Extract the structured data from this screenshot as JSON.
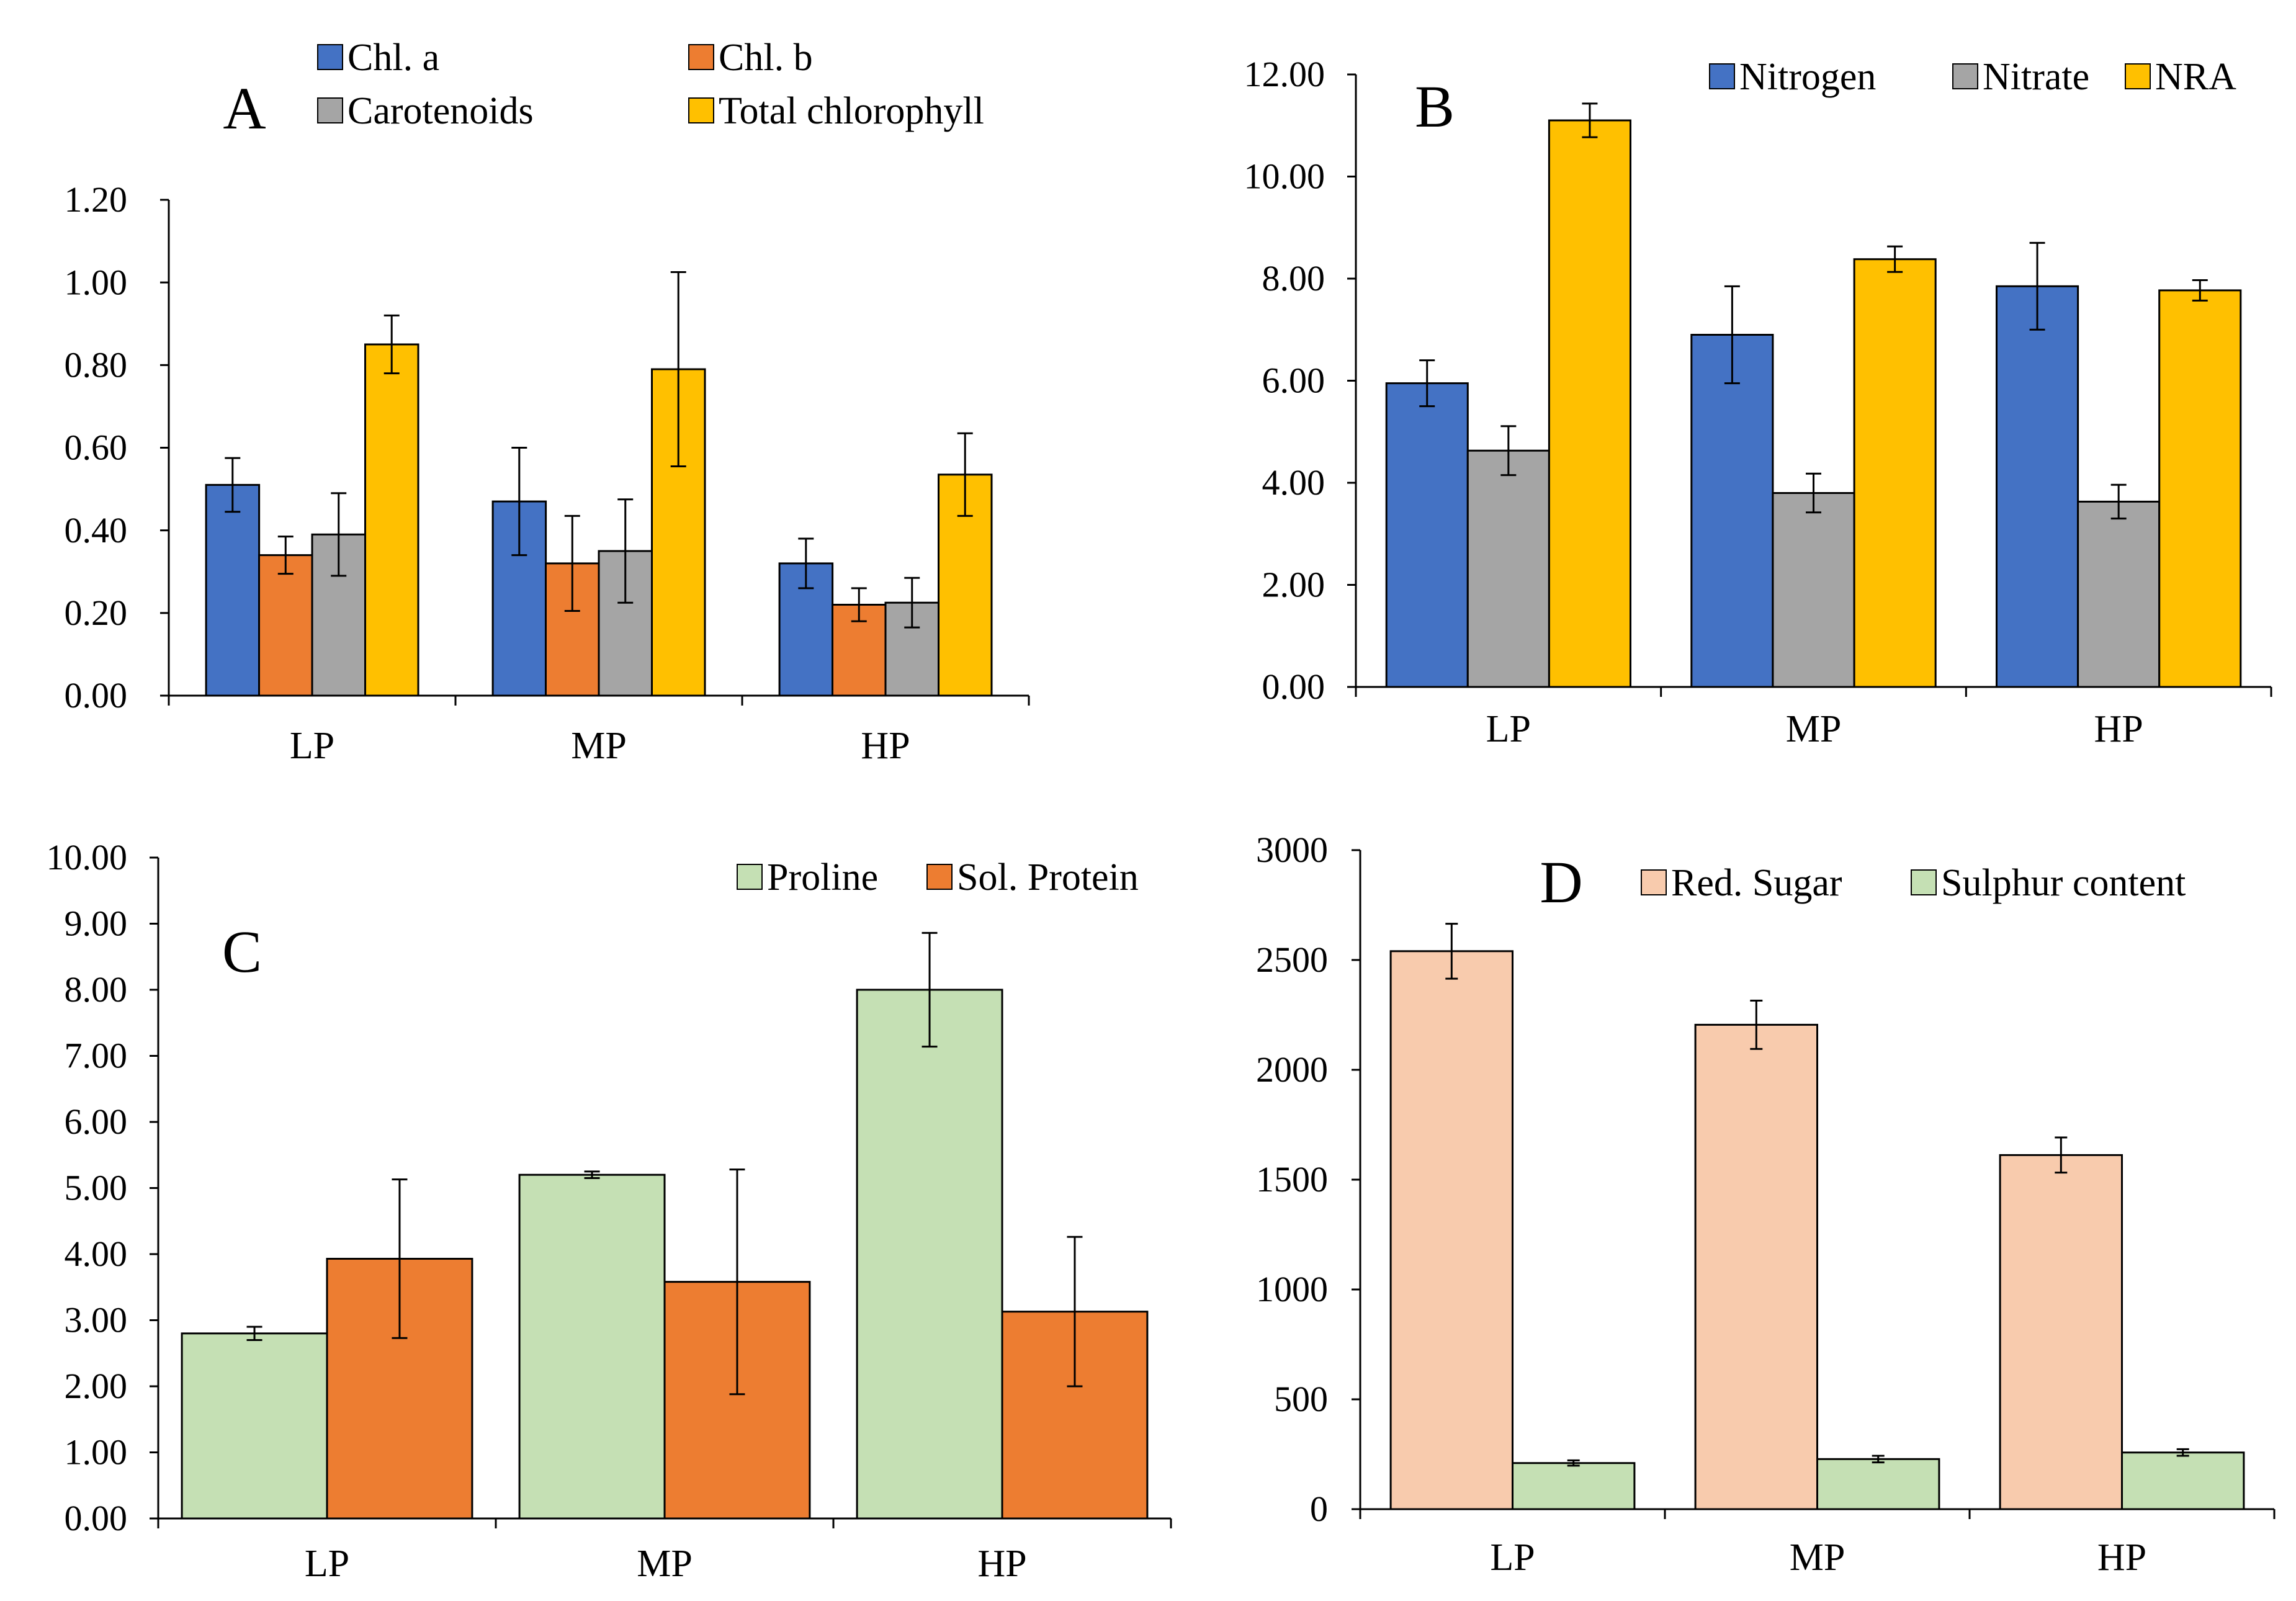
{
  "chart_data": [
    {
      "type": "bar",
      "panel_label": "A",
      "categories": [
        "LP",
        "MP",
        "HP"
      ],
      "ylim": [
        0,
        1.2
      ],
      "yticks": [
        0,
        0.2,
        0.4,
        0.6,
        0.8,
        1.0,
        1.2
      ],
      "ytick_labels": [
        "0.00",
        "0.20",
        "0.40",
        "0.60",
        "0.80",
        "1.00",
        "1.20"
      ],
      "grid": false,
      "legend_placement": "top",
      "series": [
        {
          "name": "Chl. a",
          "color": "#4472C4",
          "values": [
            0.51,
            0.47,
            0.32
          ],
          "errors": [
            0.065,
            0.13,
            0.06
          ]
        },
        {
          "name": "Chl. b",
          "color": "#ED7D31",
          "values": [
            0.34,
            0.32,
            0.22
          ],
          "errors": [
            0.045,
            0.115,
            0.04
          ]
        },
        {
          "name": "Carotenoids",
          "color": "#A5A5A5",
          "values": [
            0.39,
            0.35,
            0.225
          ],
          "errors": [
            0.1,
            0.125,
            0.06
          ]
        },
        {
          "name": "Total chlorophyll",
          "color": "#FFC000",
          "values": [
            0.85,
            0.79,
            0.535
          ],
          "errors": [
            0.07,
            0.235,
            0.1
          ]
        }
      ]
    },
    {
      "type": "bar",
      "panel_label": "B",
      "categories": [
        "LP",
        "MP",
        "HP"
      ],
      "ylim": [
        0,
        12
      ],
      "yticks": [
        0,
        2,
        4,
        6,
        8,
        10,
        12
      ],
      "ytick_labels": [
        "0.00",
        "2.00",
        "4.00",
        "6.00",
        "8.00",
        "10.00",
        "12.00"
      ],
      "grid": false,
      "legend_placement": "top-right",
      "series": [
        {
          "name": "Nitrogen",
          "color": "#4472C4",
          "values": [
            5.95,
            6.9,
            7.85
          ],
          "errors": [
            0.45,
            0.95,
            0.85
          ]
        },
        {
          "name": "Nitrate",
          "color": "#A5A5A5",
          "values": [
            4.63,
            3.8,
            3.63
          ],
          "errors": [
            0.48,
            0.38,
            0.33
          ]
        },
        {
          "name": "NRA",
          "color": "#FFC000",
          "values": [
            11.1,
            8.38,
            7.77
          ],
          "errors": [
            0.33,
            0.25,
            0.2
          ]
        }
      ]
    },
    {
      "type": "bar",
      "panel_label": "C",
      "categories": [
        "LP",
        "MP",
        "HP"
      ],
      "ylim": [
        0,
        10
      ],
      "yticks": [
        0,
        1,
        2,
        3,
        4,
        5,
        6,
        7,
        8,
        9,
        10
      ],
      "ytick_labels": [
        "0.00",
        "1.00",
        "2.00",
        "3.00",
        "4.00",
        "5.00",
        "6.00",
        "7.00",
        "8.00",
        "9.00",
        "10.00"
      ],
      "grid": false,
      "legend_placement": "top-right",
      "series": [
        {
          "name": "Proline",
          "color": "#C5E0B4",
          "values": [
            2.8,
            5.2,
            8.0
          ],
          "errors": [
            0.1,
            0.05,
            0.86
          ]
        },
        {
          "name": "Sol. Protein",
          "color": "#ED7D31",
          "values": [
            3.93,
            3.58,
            3.13
          ],
          "errors": [
            1.2,
            1.7,
            1.13
          ]
        }
      ]
    },
    {
      "type": "bar",
      "panel_label": "D",
      "categories": [
        "LP",
        "MP",
        "HP"
      ],
      "ylim": [
        0,
        3000
      ],
      "yticks": [
        0,
        500,
        1000,
        1500,
        2000,
        2500,
        3000
      ],
      "ytick_labels": [
        "0",
        "500",
        "1000",
        "1500",
        "2000",
        "2500",
        "3000"
      ],
      "grid": false,
      "legend_placement": "top-right",
      "series": [
        {
          "name": "Red. Sugar",
          "color": "#F8CBAD",
          "values": [
            2540,
            2205,
            1612
          ],
          "errors": [
            125,
            110,
            80
          ]
        },
        {
          "name": "Sulphur content",
          "color": "#C5E0B4",
          "values": [
            210,
            228,
            258
          ],
          "errors": [
            12,
            15,
            15
          ]
        }
      ]
    }
  ]
}
